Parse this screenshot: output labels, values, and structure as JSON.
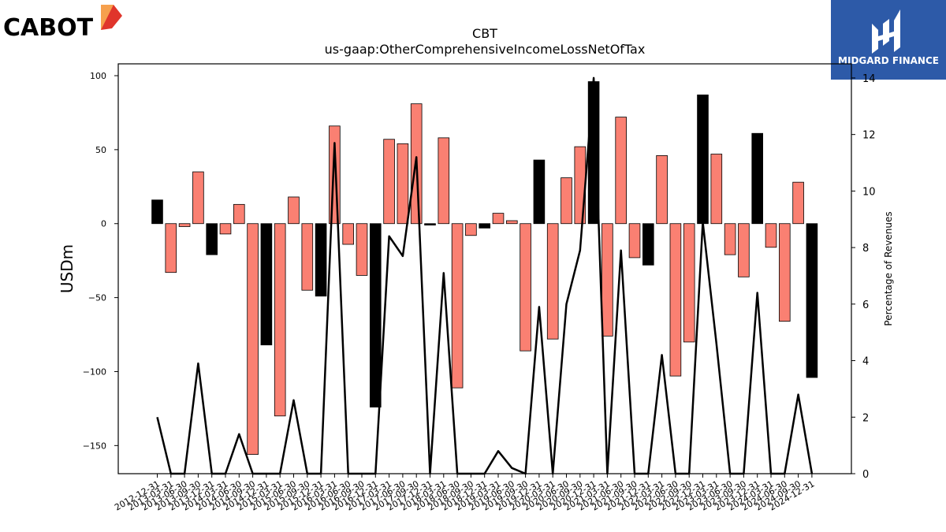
{
  "brand": {
    "left_logo_text": "CABOT",
    "right_logo_text": "MIDGARD FINANCE"
  },
  "chart_data": {
    "type": "bar",
    "title": "CBT",
    "subtitle": "us-gaap:OtherComprehensiveIncomeLossNetOfTax",
    "ylabel": "USDm",
    "y2label": "Percentage of Revenues",
    "ylim": [
      -169,
      108
    ],
    "y2lim": [
      0,
      14.5
    ],
    "yticks": [
      100,
      50,
      0,
      -50,
      -100,
      -150
    ],
    "y2ticks": [
      0,
      2,
      4,
      6,
      8,
      10,
      12,
      14
    ],
    "colors": {
      "quarter": "#fa8072",
      "year_end": "#000000",
      "line": "#000000"
    },
    "categories": [
      "2012-12-31",
      "2013-03-31",
      "2013-06-30",
      "2013-09-30",
      "2013-12-31",
      "2014-03-31",
      "2014-06-30",
      "2014-09-30",
      "2014-12-31",
      "2015-03-31",
      "2015-06-30",
      "2015-09-30",
      "2015-12-31",
      "2016-03-31",
      "2016-06-30",
      "2016-09-30",
      "2016-12-31",
      "2017-03-31",
      "2017-06-30",
      "2017-09-30",
      "2017-12-31",
      "2018-03-31",
      "2018-06-30",
      "2018-09-30",
      "2018-12-31",
      "2019-03-31",
      "2019-06-30",
      "2019-09-30",
      "2019-12-31",
      "2020-03-31",
      "2020-06-30",
      "2020-09-30",
      "2020-12-31",
      "2021-03-31",
      "2021-06-30",
      "2021-09-30",
      "2021-12-31",
      "2022-03-31",
      "2022-06-30",
      "2022-09-30",
      "2022-12-31",
      "2023-03-31",
      "2023-06-30",
      "2023-09-30",
      "2023-12-31",
      "2024-03-31",
      "2024-06-30",
      "2024-09-30",
      "2024-12-31"
    ],
    "xtick_labels": [
      "2012-12-31",
      "2013-03-31",
      "2013-06-30",
      "2013-09-30",
      "2013-12-31",
      "2014-03-31",
      "2014-06-30",
      "2014-09-30",
      "2014-12-31",
      "2015-03-31",
      "2015-06-30",
      "2015-09-30",
      "2015-12-31",
      "2016-03-31",
      "2016-06-30",
      "2016-09-30",
      "2016-12-31",
      "2017-03-31",
      "2017-06-30",
      "2017-09-30",
      "2017-12-31",
      "2018-03-31",
      "2018-06-30",
      "2018-09-30",
      "2018-12-31",
      "2019-03-31",
      "2019-06-30",
      "2019-09-30",
      "2019-12-31",
      "2020-03-31",
      "2020-06-30",
      "2020-09-30",
      "2020-12-31",
      "2021-03-31",
      "2021-06-30",
      "2021-09-30",
      "2021-12-31",
      "2022-03-31",
      "2022-06-30",
      "2022-09-30",
      "2022-12-31",
      "2023-03-31",
      "2023-06-30",
      "2023-09-30",
      "2023-12-31",
      "2024-03-31",
      "2024-06-30",
      "2024-09-30",
      "2024-12-31"
    ],
    "values": [
      16,
      -33,
      -2,
      35,
      -21,
      -7,
      13,
      -156,
      -82,
      -130,
      18,
      -45,
      -49,
      66,
      -14,
      -35,
      -124,
      57,
      54,
      81,
      -1,
      58,
      -111,
      -8,
      -3,
      7,
      2,
      -86,
      43,
      -78,
      31,
      52,
      96,
      -76,
      72,
      -23,
      -28,
      46,
      -103,
      -80,
      87,
      47,
      -21,
      -36,
      61,
      -16,
      -66,
      28,
      -104
    ],
    "year_end": [
      true,
      false,
      false,
      false,
      true,
      false,
      false,
      false,
      true,
      false,
      false,
      false,
      true,
      false,
      false,
      false,
      true,
      false,
      false,
      false,
      true,
      false,
      false,
      false,
      true,
      false,
      false,
      false,
      true,
      false,
      false,
      false,
      true,
      false,
      false,
      false,
      true,
      false,
      false,
      false,
      true,
      false,
      false,
      false,
      true,
      false,
      false,
      false,
      true
    ],
    "percent_of_revenues": [
      2.0,
      0,
      0,
      3.9,
      0,
      0,
      1.4,
      0,
      0,
      0,
      2.6,
      0,
      0,
      11.7,
      0,
      0,
      0,
      8.4,
      7.7,
      11.2,
      0,
      7.1,
      0,
      0,
      0,
      0.8,
      0.2,
      0,
      5.9,
      0,
      6.0,
      7.9,
      14.0,
      0,
      7.9,
      0,
      0,
      4.2,
      0,
      0,
      8.9,
      4.6,
      0,
      0,
      6.4,
      0,
      0,
      2.8,
      0
    ]
  }
}
